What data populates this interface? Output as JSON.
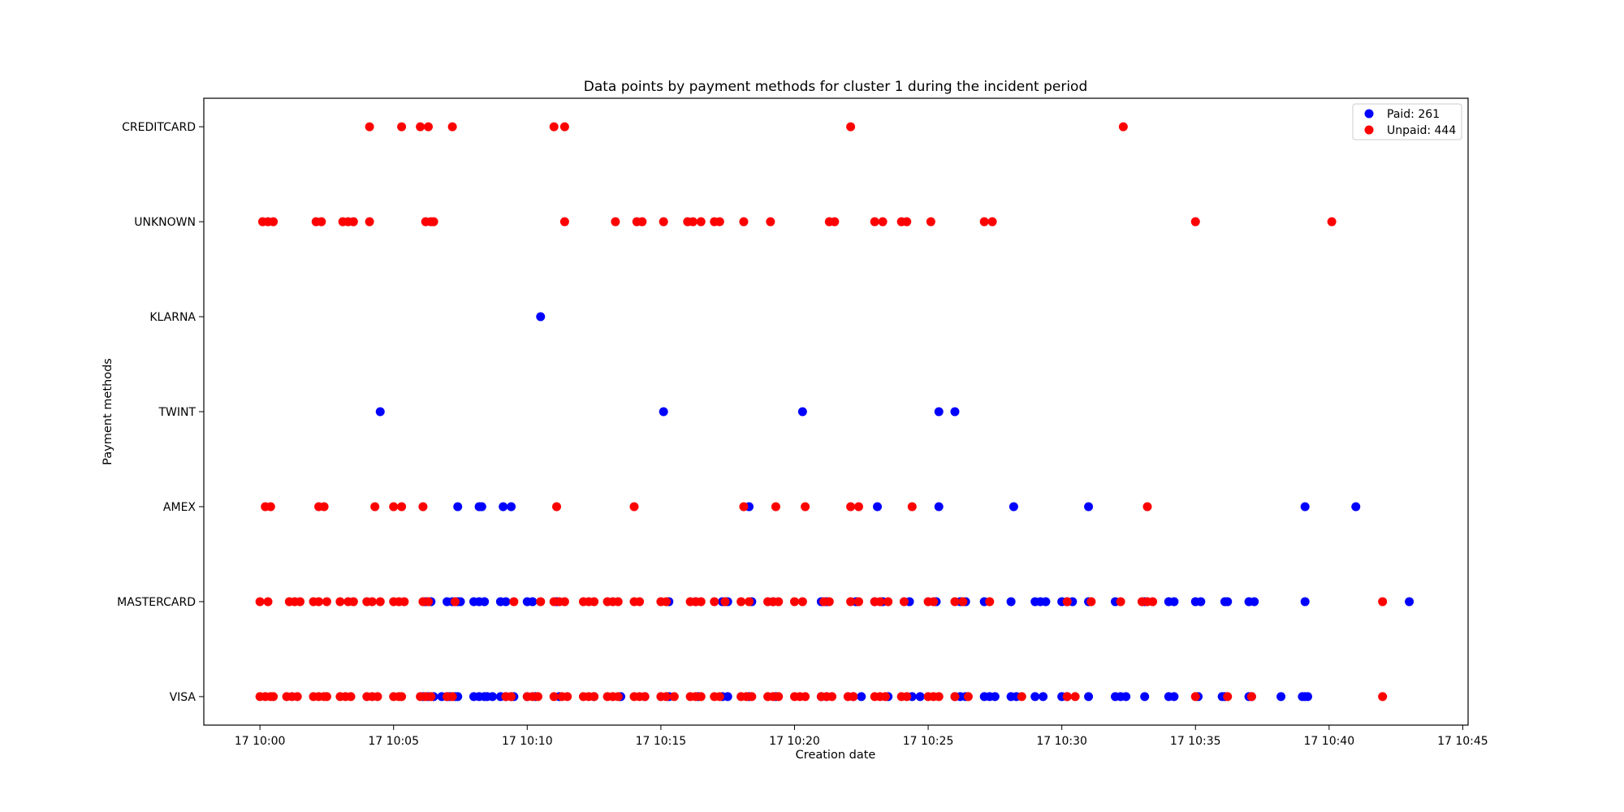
{
  "chart_data": {
    "type": "scatter",
    "title": "Data points by payment methods for cluster 1 during the incident period",
    "xlabel": "Creation date",
    "ylabel": "Payment methods",
    "x_ticks": [
      "17 10:00",
      "17 10:05",
      "17 10:10",
      "17 10:15",
      "17 10:20",
      "17 10:25",
      "17 10:30",
      "17 10:35",
      "17 10:40",
      "17 10:45"
    ],
    "x_unit": "minutes after 10:00 on day 17",
    "xlim": [
      -2.1,
      45.2
    ],
    "categories": [
      "VISA",
      "MASTERCARD",
      "AMEX",
      "TWINT",
      "KLARNA",
      "UNKNOWN",
      "CREDITCARD"
    ],
    "ylim": [
      -0.3,
      6.3
    ],
    "legend_position": "top-right",
    "grid": false,
    "colors": {
      "paid": "#0000ff",
      "unpaid": "#ff0000"
    },
    "series": [
      {
        "name": "Paid: 261",
        "color": "#0000ff",
        "points": {
          "VISA": [
            6.1,
            6.3,
            6.5,
            6.8,
            7.0,
            7.1,
            7.3,
            7.4,
            8.0,
            8.2,
            8.4,
            8.5,
            8.7,
            9.0,
            9.2,
            9.4,
            9.5,
            10.0,
            10.3,
            11.2,
            12.5,
            13.5,
            14.4,
            15.3,
            16.4,
            17.3,
            17.5,
            18.3,
            19.3,
            21.0,
            21.2,
            22.2,
            22.5,
            23.5,
            24.4,
            24.7,
            26.0,
            26.2,
            26.4,
            27.1,
            27.3,
            27.5,
            28.1,
            28.3,
            29.0,
            29.3,
            30.0,
            30.2,
            31.0,
            32.0,
            32.2,
            32.4,
            33.1,
            34.0,
            34.2,
            35.1,
            36.0,
            36.1,
            37.0,
            37.1,
            38.2,
            39.0,
            39.1,
            39.2
          ],
          "MASTERCARD": [
            6.2,
            6.4,
            7.0,
            7.2,
            7.4,
            7.5,
            8.0,
            8.2,
            8.4,
            9.0,
            9.2,
            10.0,
            10.2,
            11.1,
            15.3,
            16.3,
            17.3,
            17.5,
            18.4,
            19.2,
            21.0,
            21.2,
            22.3,
            23.0,
            23.3,
            24.3,
            25.3,
            26.2,
            26.4,
            27.1,
            28.1,
            29.0,
            29.2,
            29.4,
            30.0,
            30.2,
            30.4,
            31.0,
            32.0,
            33.1,
            34.0,
            34.2,
            35.0,
            35.2,
            36.1,
            36.2,
            37.0,
            37.2,
            39.1,
            43.0
          ],
          "AMEX": [
            7.4,
            8.2,
            8.3,
            9.1,
            9.4,
            18.3,
            23.1,
            25.4,
            28.2,
            31.0,
            39.1,
            41.0
          ],
          "TWINT": [
            4.5,
            15.1,
            20.3,
            25.4,
            26.0
          ],
          "KLARNA": [
            10.5
          ],
          "UNKNOWN": [],
          "CREDITCARD": []
        }
      },
      {
        "name": "Unpaid: 444",
        "color": "#ff0000",
        "points": {
          "VISA": [
            0.0,
            0.2,
            0.4,
            0.5,
            1.0,
            1.2,
            1.4,
            2.0,
            2.2,
            2.4,
            2.5,
            3.0,
            3.2,
            3.4,
            4.0,
            4.2,
            4.4,
            5.0,
            5.2,
            5.3,
            6.0,
            6.2,
            6.4,
            7.0,
            7.2,
            9.2,
            9.4,
            10.0,
            10.2,
            10.4,
            11.0,
            11.3,
            11.5,
            12.1,
            12.3,
            12.5,
            13.0,
            13.2,
            13.4,
            14.0,
            14.2,
            14.4,
            15.0,
            15.2,
            15.5,
            16.1,
            16.3,
            16.5,
            17.0,
            17.2,
            18.0,
            18.2,
            18.4,
            19.0,
            19.2,
            19.4,
            20.0,
            20.2,
            20.4,
            21.0,
            21.2,
            21.4,
            22.0,
            22.2,
            23.0,
            23.2,
            23.4,
            24.0,
            24.2,
            25.0,
            25.2,
            25.4,
            26.0,
            26.5,
            28.5,
            30.2,
            30.5,
            35.0,
            36.2,
            37.1,
            42.0
          ],
          "MASTERCARD": [
            0.0,
            0.3,
            1.1,
            1.3,
            1.5,
            2.0,
            2.2,
            2.5,
            3.0,
            3.3,
            3.5,
            4.0,
            4.2,
            4.5,
            5.0,
            5.2,
            5.4,
            6.1,
            6.3,
            7.3,
            9.5,
            10.5,
            11.0,
            11.2,
            11.4,
            12.1,
            12.3,
            12.5,
            13.0,
            13.2,
            13.4,
            14.0,
            14.2,
            15.0,
            15.2,
            16.1,
            16.3,
            16.5,
            17.0,
            17.4,
            18.0,
            18.3,
            19.0,
            19.2,
            19.4,
            20.0,
            20.3,
            21.1,
            21.3,
            22.1,
            22.4,
            23.0,
            23.2,
            23.5,
            24.1,
            25.0,
            25.2,
            26.0,
            26.3,
            27.3,
            30.2,
            31.1,
            32.2,
            33.0,
            33.2,
            33.4,
            42.0
          ],
          "AMEX": [
            0.2,
            0.4,
            2.2,
            2.4,
            4.3,
            5.0,
            5.3,
            6.1,
            11.1,
            14.0,
            18.1,
            19.3,
            20.4,
            22.1,
            22.4,
            24.4,
            33.2
          ],
          "TWINT": [],
          "KLARNA": [],
          "UNKNOWN": [
            0.1,
            0.3,
            0.5,
            2.1,
            2.3,
            3.1,
            3.3,
            3.5,
            4.1,
            6.2,
            6.4,
            6.5,
            11.4,
            13.3,
            14.1,
            14.3,
            15.1,
            16.0,
            16.2,
            16.5,
            17.0,
            17.2,
            18.1,
            19.1,
            21.3,
            21.5,
            23.0,
            23.3,
            24.0,
            24.2,
            25.1,
            27.1,
            27.4,
            35.0,
            40.1
          ],
          "CREDITCARD": [
            4.1,
            5.3,
            6.0,
            6.3,
            7.2,
            11.0,
            11.4,
            22.1,
            32.3
          ]
        }
      }
    ]
  }
}
